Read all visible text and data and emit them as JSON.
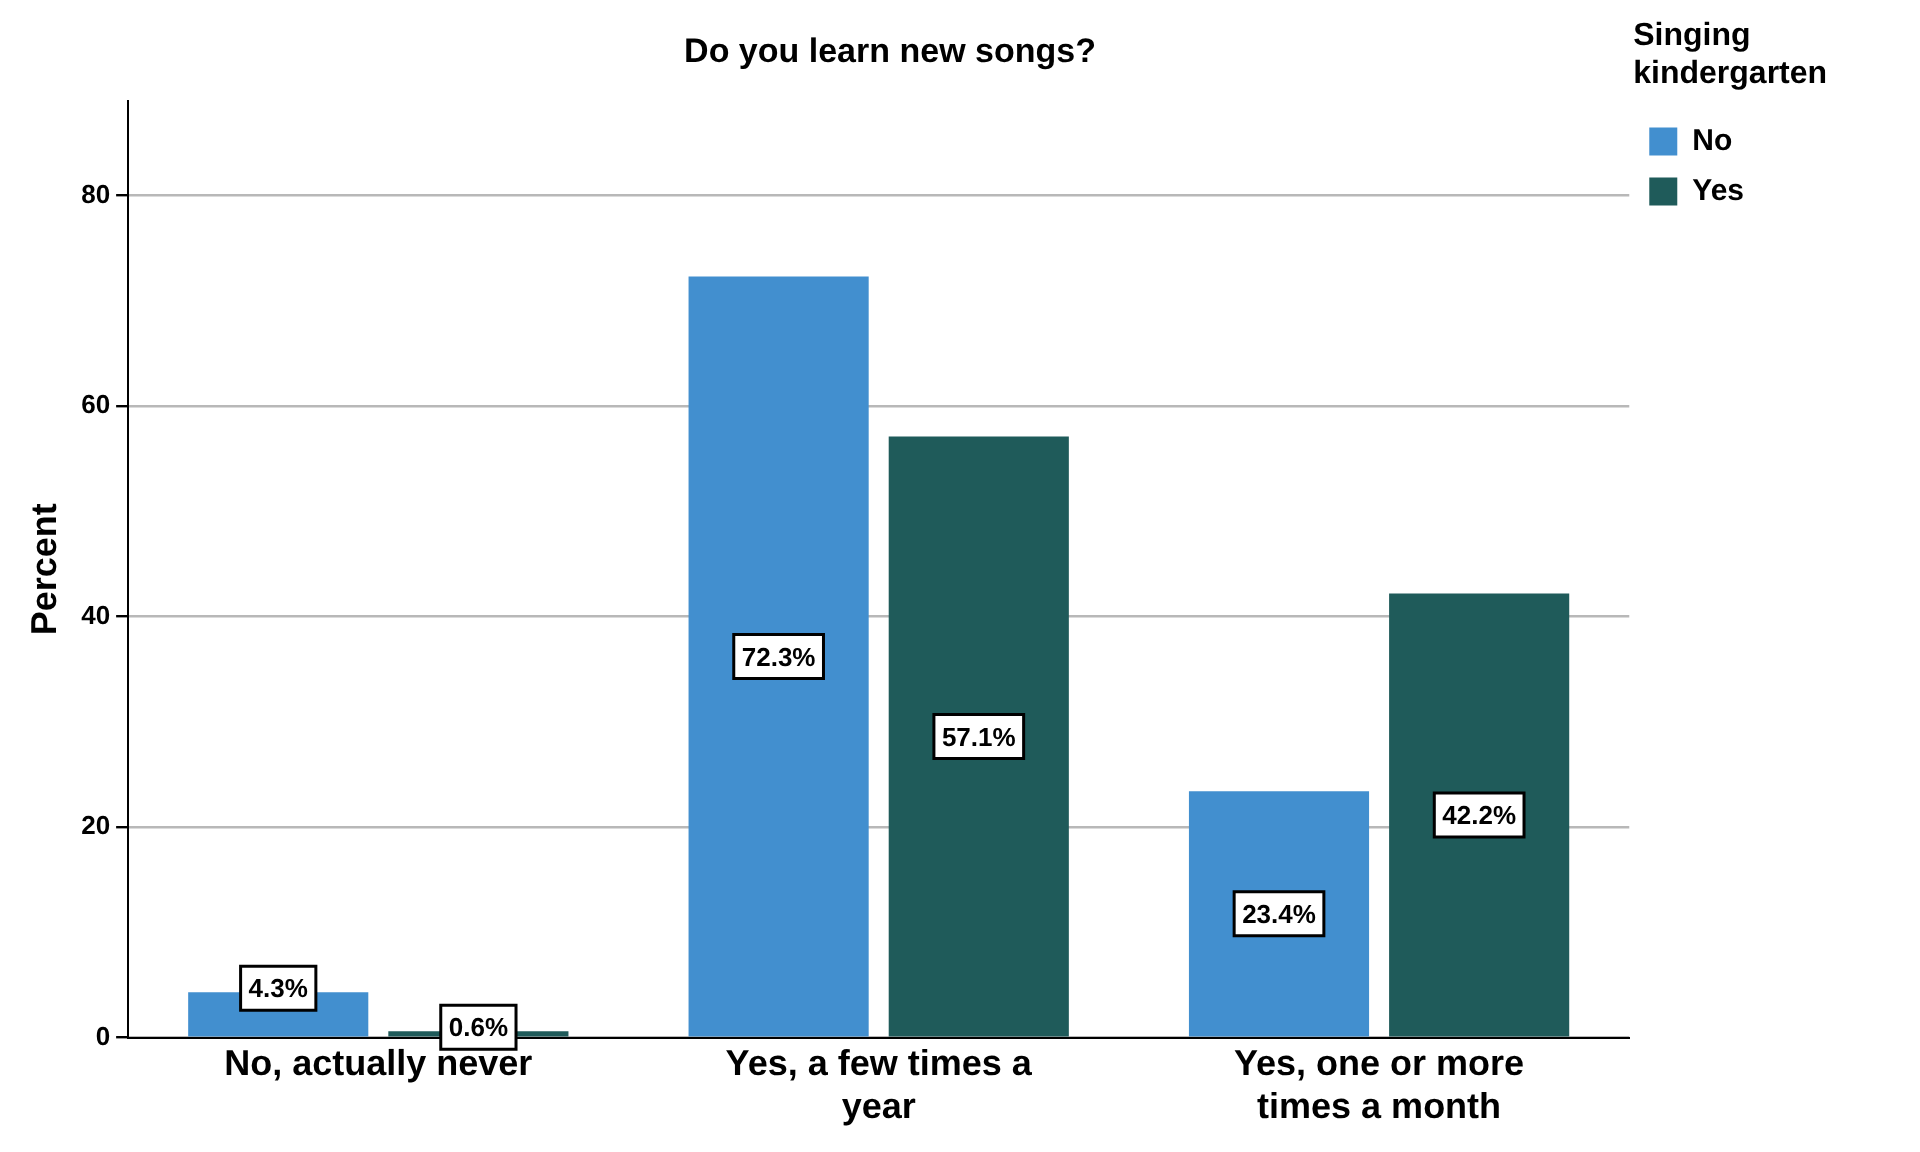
{
  "chart_data": {
    "type": "bar",
    "title": "Do you learn new songs?",
    "xlabel": null,
    "ylabel": "Percent",
    "legend_title": "Singing kindergarten",
    "categories": [
      "No, actually never",
      "Yes, a few times a year",
      "Yes, one or more times a month"
    ],
    "series": [
      {
        "name": "No",
        "color": "#428fcf",
        "values": [
          4.3,
          72.3,
          23.4
        ],
        "value_labels": [
          "4.3%",
          "72.3%",
          "23.4%"
        ]
      },
      {
        "name": "Yes",
        "color": "#1f5b5a",
        "values": [
          0.6,
          57.1,
          42.2
        ],
        "value_labels": [
          "0.6%",
          "57.1%",
          "42.2%"
        ]
      }
    ],
    "ylim": [
      0,
      89
    ],
    "yticks": [
      0,
      20,
      40,
      60,
      80
    ],
    "grid": "y",
    "legend": "top right"
  }
}
